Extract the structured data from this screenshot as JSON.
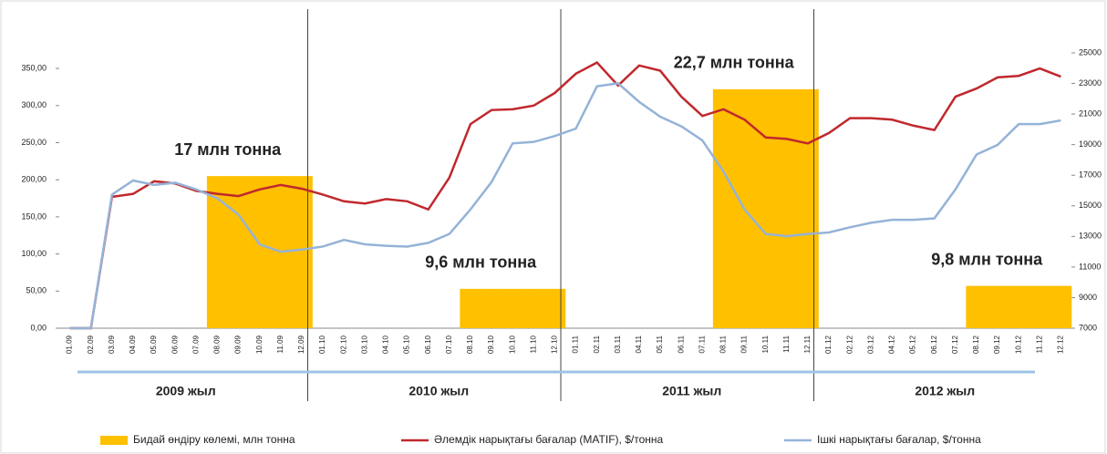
{
  "chart_data": {
    "type": "combo",
    "categories": [
      "01.09",
      "02.09",
      "03.09",
      "04.09",
      "05.09",
      "06.09",
      "07.09",
      "08.09",
      "09.09",
      "10.09",
      "11.09",
      "12.09",
      "01.10",
      "02.10",
      "03.10",
      "04.10",
      "05.10",
      "06.10",
      "07.10",
      "08.10",
      "09.10",
      "10.10",
      "11.10",
      "12.10",
      "01.11",
      "02.11",
      "03.11",
      "04.11",
      "05.11",
      "06.11",
      "07.11",
      "08.11",
      "09.11",
      "10.11",
      "11.11",
      "12.11",
      "01.12",
      "02.12",
      "03.12",
      "04.12",
      "05.12",
      "06.12",
      "07.12",
      "08.12",
      "09.12",
      "10.12",
      "11.12",
      "12.12"
    ],
    "years": [
      "2009 жыл",
      "2010 жыл",
      "2011 жыл",
      "2012 жыл"
    ],
    "annotations": [
      "17 млн тонна",
      "9,6 млн тонна",
      "22,7 млн тонна",
      "9,8 млн тонна"
    ],
    "series": [
      {
        "name": "Бидай өндіру көлемі, млн тонна",
        "type": "bar",
        "color": "#ffc000",
        "values": [
          null,
          null,
          null,
          null,
          null,
          null,
          null,
          205,
          205,
          205,
          205,
          205,
          null,
          null,
          null,
          null,
          null,
          null,
          null,
          53,
          53,
          53,
          53,
          53,
          null,
          null,
          null,
          null,
          null,
          null,
          null,
          322,
          322,
          322,
          322,
          322,
          null,
          null,
          null,
          null,
          null,
          null,
          null,
          57,
          57,
          57,
          57,
          57
        ]
      },
      {
        "name": "Әлемдік нарықтағы бағалар (MATIF), $/тонна",
        "type": "line",
        "color": "#c0282d",
        "values": [
          0,
          0,
          177,
          181,
          198,
          195,
          185,
          181,
          178,
          187,
          193,
          188,
          180,
          171,
          168,
          174,
          171,
          160,
          203,
          275,
          294,
          295,
          300,
          317,
          343,
          358,
          327,
          354,
          347,
          312,
          286,
          295,
          281,
          257,
          255,
          249,
          263,
          283,
          283,
          281,
          273,
          267,
          312,
          323,
          338,
          340,
          350,
          339
        ]
      },
      {
        "name": "Ішкі нарықтағы бағалар, $/тонна",
        "type": "line",
        "color": "#95b3d7",
        "values": [
          0,
          0,
          180,
          199,
          193,
          196,
          187,
          175,
          153,
          113,
          103,
          106,
          110,
          119,
          113,
          111,
          110,
          115,
          127,
          160,
          197,
          249,
          251,
          259,
          269,
          326,
          330,
          305,
          285,
          272,
          253,
          211,
          160,
          127,
          124,
          127,
          129,
          136,
          142,
          146,
          146,
          148,
          187,
          234,
          247,
          275,
          275,
          280
        ]
      }
    ],
    "ylim": [
      0,
      371
    ],
    "yticks": [
      {
        "value": 0,
        "label": "0,00"
      },
      {
        "value": 50,
        "label": "50,00"
      },
      {
        "value": 100,
        "label": "100,00"
      },
      {
        "value": 150,
        "label": "150,00"
      },
      {
        "value": 200,
        "label": "200,00"
      },
      {
        "value": 250,
        "label": "250,00"
      },
      {
        "value": 300,
        "label": "300,00"
      },
      {
        "value": 350,
        "label": "350,00"
      }
    ],
    "y2lim": [
      7000,
      25000
    ],
    "y2ticks": [
      7000,
      9000,
      11000,
      13000,
      15000,
      17000,
      19000,
      21000,
      23000,
      25000
    ]
  }
}
